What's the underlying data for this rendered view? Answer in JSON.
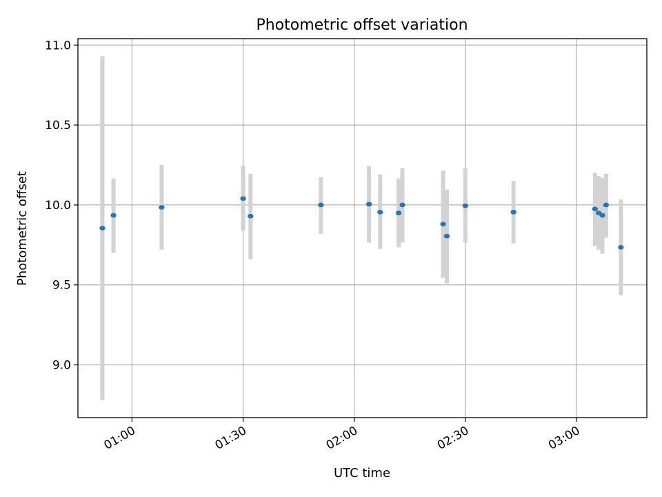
{
  "chart_data": {
    "type": "scatter",
    "title": "Photometric offset variation",
    "xlabel": "UTC time",
    "ylabel": "Photometric offset",
    "x_tick_labels": [
      "01:00",
      "01:30",
      "02:00",
      "02:30",
      "03:00"
    ],
    "x_tick_minutes": [
      60,
      90,
      120,
      150,
      180
    ],
    "xlim_minutes": [
      45.4,
      199.0
    ],
    "y_ticks": [
      9.0,
      9.5,
      10.0,
      10.5,
      11.0
    ],
    "y_tick_labels": [
      "9.0",
      "9.5",
      "10.0",
      "10.5",
      "11.0"
    ],
    "ylim": [
      8.67,
      11.04
    ],
    "grid": true,
    "point_color": "#1f77b4",
    "errorbar_color": "#d3d3d3",
    "points": [
      {
        "t": "00:52",
        "y": 9.855,
        "ylow": 8.78,
        "yhigh": 10.93
      },
      {
        "t": "00:55",
        "y": 9.935,
        "ylow": 9.7,
        "yhigh": 10.165
      },
      {
        "t": "01:08",
        "y": 9.985,
        "ylow": 9.72,
        "yhigh": 10.25
      },
      {
        "t": "01:30",
        "y": 10.04,
        "ylow": 9.84,
        "yhigh": 10.245
      },
      {
        "t": "01:32",
        "y": 9.93,
        "ylow": 9.66,
        "yhigh": 10.195
      },
      {
        "t": "01:51",
        "y": 10.0,
        "ylow": 9.82,
        "yhigh": 10.175
      },
      {
        "t": "02:04",
        "y": 10.005,
        "ylow": 9.765,
        "yhigh": 10.245
      },
      {
        "t": "02:07",
        "y": 9.955,
        "ylow": 9.725,
        "yhigh": 10.19
      },
      {
        "t": "02:12",
        "y": 9.95,
        "ylow": 9.735,
        "yhigh": 10.165
      },
      {
        "t": "02:13",
        "y": 10.0,
        "ylow": 9.765,
        "yhigh": 10.23
      },
      {
        "t": "02:24",
        "y": 9.88,
        "ylow": 9.545,
        "yhigh": 10.215
      },
      {
        "t": "02:25",
        "y": 9.805,
        "ylow": 9.51,
        "yhigh": 10.095
      },
      {
        "t": "02:30",
        "y": 9.995,
        "ylow": 9.765,
        "yhigh": 10.23
      },
      {
        "t": "02:43",
        "y": 9.955,
        "ylow": 9.76,
        "yhigh": 10.15
      },
      {
        "t": "03:05",
        "y": 9.975,
        "ylow": 9.745,
        "yhigh": 10.2
      },
      {
        "t": "03:06",
        "y": 9.95,
        "ylow": 9.72,
        "yhigh": 10.18
      },
      {
        "t": "03:07",
        "y": 9.935,
        "ylow": 9.695,
        "yhigh": 10.17
      },
      {
        "t": "03:08",
        "y": 10.0,
        "ylow": 9.795,
        "yhigh": 10.195
      },
      {
        "t": "03:12",
        "y": 9.735,
        "ylow": 9.435,
        "yhigh": 10.035
      }
    ]
  }
}
